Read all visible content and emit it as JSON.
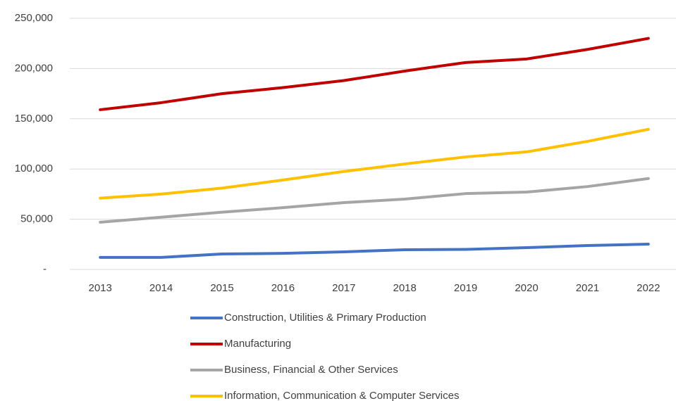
{
  "chart_data": {
    "type": "line",
    "categories": [
      "2013",
      "2014",
      "2015",
      "2016",
      "2017",
      "2018",
      "2019",
      "2020",
      "2021",
      "2022"
    ],
    "series": [
      {
        "name": "Construction, Utilities & Primary Production",
        "color": "#4472c4",
        "values": [
          12000,
          12000,
          15400,
          16000,
          17500,
          19600,
          20000,
          21700,
          23800,
          25200
        ]
      },
      {
        "name": "Manufacturing",
        "color": "#c00000",
        "values": [
          159000,
          166000,
          175000,
          181000,
          188000,
          197500,
          206000,
          209500,
          219000,
          230000
        ]
      },
      {
        "name": "Business, Financial & Other Services",
        "color": "#a5a5a5",
        "values": [
          47000,
          52000,
          57000,
          61500,
          66500,
          70000,
          75500,
          77000,
          82500,
          90500
        ]
      },
      {
        "name": "Information, Communication & Computer Services",
        "color": "#ffc000",
        "values": [
          71000,
          75000,
          81000,
          89000,
          97500,
          105000,
          112000,
          117000,
          127500,
          139500
        ]
      }
    ],
    "ylim": [
      0,
      250000
    ],
    "yticks": [
      {
        "value": 0,
        "label": "-"
      },
      {
        "value": 50000,
        "label": "50,000"
      },
      {
        "value": 100000,
        "label": "100,000"
      },
      {
        "value": 150000,
        "label": "150,000"
      },
      {
        "value": 200000,
        "label": "200,000"
      },
      {
        "value": 250000,
        "label": "250,000"
      }
    ],
    "grid": true,
    "legend": "bottom"
  }
}
